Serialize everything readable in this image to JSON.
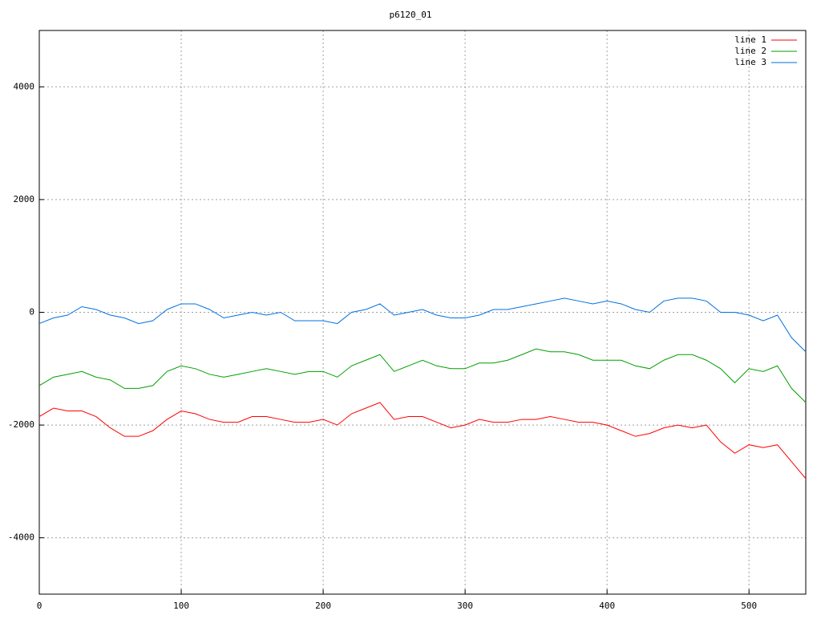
{
  "chart_data": {
    "type": "line",
    "title": "p6120_01",
    "x": [
      0,
      10,
      20,
      30,
      40,
      50,
      60,
      70,
      80,
      90,
      100,
      110,
      120,
      130,
      140,
      150,
      160,
      170,
      180,
      190,
      200,
      210,
      220,
      230,
      240,
      250,
      260,
      270,
      280,
      290,
      300,
      310,
      320,
      330,
      340,
      350,
      360,
      370,
      380,
      390,
      400,
      410,
      420,
      430,
      440,
      450,
      460,
      470,
      480,
      490,
      500,
      510,
      520,
      530,
      540
    ],
    "series": [
      {
        "name": "line 1",
        "color": "#ff0000",
        "values": [
          -1850,
          -1700,
          -1750,
          -1750,
          -1850,
          -2050,
          -2200,
          -2200,
          -2100,
          -1900,
          -1750,
          -1800,
          -1900,
          -1950,
          -1950,
          -1850,
          -1850,
          -1900,
          -1950,
          -1950,
          -1900,
          -2000,
          -1800,
          -1700,
          -1600,
          -1900,
          -1850,
          -1850,
          -1950,
          -2050,
          -2000,
          -1900,
          -1950,
          -1950,
          -1900,
          -1900,
          -1850,
          -1900,
          -1950,
          -1950,
          -2000,
          -2100,
          -2200,
          -2150,
          -2050,
          -2000,
          -2050,
          -2000,
          -2300,
          -2500,
          -2350,
          -2400,
          -2350,
          -2650,
          -2950
        ]
      },
      {
        "name": "line 2",
        "color": "#00a000",
        "values": [
          -1300,
          -1150,
          -1100,
          -1050,
          -1150,
          -1200,
          -1350,
          -1350,
          -1300,
          -1050,
          -950,
          -1000,
          -1100,
          -1150,
          -1100,
          -1050,
          -1000,
          -1050,
          -1100,
          -1050,
          -1050,
          -1150,
          -950,
          -850,
          -750,
          -1050,
          -950,
          -850,
          -950,
          -1000,
          -1000,
          -900,
          -900,
          -850,
          -750,
          -650,
          -700,
          -700,
          -750,
          -850,
          -850,
          -850,
          -950,
          -1000,
          -850,
          -750,
          -750,
          -850,
          -1000,
          -1250,
          -1000,
          -1050,
          -950,
          -1350,
          -1600
        ]
      },
      {
        "name": "line 3",
        "color": "#0070e0",
        "values": [
          -200,
          -100,
          -50,
          100,
          50,
          -50,
          -100,
          -200,
          -150,
          50,
          150,
          150,
          50,
          -100,
          -50,
          0,
          -50,
          0,
          -150,
          -150,
          -150,
          -200,
          0,
          50,
          150,
          -50,
          0,
          50,
          -50,
          -100,
          -100,
          -50,
          50,
          50,
          100,
          150,
          200,
          250,
          200,
          150,
          200,
          150,
          50,
          0,
          200,
          250,
          250,
          200,
          0,
          0,
          -50,
          -150,
          -50,
          -450,
          -700
        ]
      }
    ],
    "xlim": [
      0,
      540
    ],
    "ylim": [
      -5000,
      5000
    ],
    "xticks": [
      0,
      100,
      200,
      300,
      400,
      500
    ],
    "yticks": [
      -4000,
      -2000,
      0,
      2000,
      4000
    ],
    "grid": true,
    "legend": "top-right"
  }
}
